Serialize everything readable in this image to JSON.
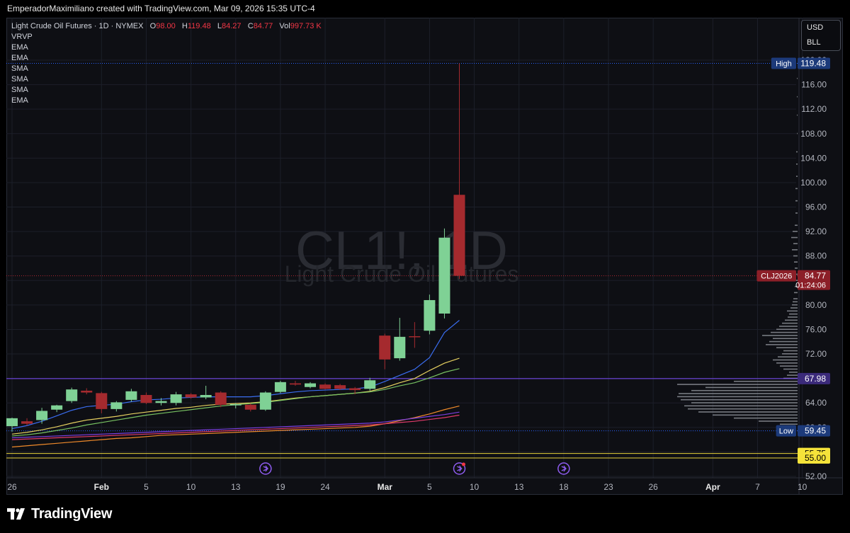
{
  "header": {
    "caption": "EmperadorMaximiliano created with TradingView.com, Mar 09, 2026 15:35 UTC-4"
  },
  "legend": {
    "symbol_line": "Light Crude Oil Futures · 1D · NYMEX",
    "o_label": "O",
    "o_value": "98.00",
    "h_label": "H",
    "h_value": "119.48",
    "l_label": "L",
    "l_value": "84.27",
    "c_label": "C",
    "c_value": "84.77",
    "vol_label": "Vol",
    "vol_value": "997.73 K",
    "indicators": [
      "VRVP",
      "EMA",
      "EMA",
      "SMA",
      "SMA",
      "SMA",
      "EMA"
    ]
  },
  "currency": {
    "currency": "USD",
    "unit": "BLL"
  },
  "watermark": {
    "symbol": "CL1!, 1D",
    "name": "Light Crude Oil Futures"
  },
  "brand": {
    "name": "TradingView"
  },
  "colors": {
    "up": "#7fd195",
    "down": "#a52a2e",
    "background": "#0e0f14"
  },
  "chart_data": {
    "type": "candlestick",
    "y_axis": {
      "range": [
        52,
        121
      ],
      "ticks": [
        "52.00",
        "56.00",
        "60.00",
        "64.00",
        "68.00",
        "72.00",
        "76.00",
        "80.00",
        "84.00",
        "88.00",
        "92.00",
        "96.00",
        "100.00",
        "104.00",
        "108.00",
        "112.00",
        "116.00",
        "120.00"
      ]
    },
    "x_axis": {
      "ticks": [
        {
          "label": "26",
          "x": 0
        },
        {
          "label": "Feb",
          "x": 6
        },
        {
          "label": "5",
          "x": 9
        },
        {
          "label": "10",
          "x": 12
        },
        {
          "label": "13",
          "x": 15
        },
        {
          "label": "19",
          "x": 18
        },
        {
          "label": "24",
          "x": 21
        },
        {
          "label": "Mar",
          "x": 25
        },
        {
          "label": "5",
          "x": 28
        },
        {
          "label": "10",
          "x": 31
        },
        {
          "label": "13",
          "x": 34
        },
        {
          "label": "18",
          "x": 37
        },
        {
          "label": "23",
          "x": 40
        },
        {
          "label": "26",
          "x": 43
        },
        {
          "label": "Apr",
          "x": 47
        },
        {
          "label": "7",
          "x": 50
        },
        {
          "label": "10",
          "x": 53
        }
      ],
      "bold": [
        "Feb",
        "Mar",
        "Apr"
      ]
    },
    "candles": [
      {
        "o": 60.2,
        "h": 61.6,
        "l": 59.3,
        "c": 61.5
      },
      {
        "o": 61.0,
        "h": 61.5,
        "l": 60.3,
        "c": 60.6
      },
      {
        "o": 61.2,
        "h": 63.2,
        "l": 60.6,
        "c": 62.7
      },
      {
        "o": 62.9,
        "h": 63.7,
        "l": 62.5,
        "c": 63.6
      },
      {
        "o": 64.3,
        "h": 66.5,
        "l": 64.0,
        "c": 66.2
      },
      {
        "o": 66.0,
        "h": 66.4,
        "l": 65.4,
        "c": 65.7
      },
      {
        "o": 65.6,
        "h": 65.8,
        "l": 62.3,
        "c": 63.0
      },
      {
        "o": 63.0,
        "h": 64.3,
        "l": 62.6,
        "c": 64.1
      },
      {
        "o": 64.5,
        "h": 66.3,
        "l": 64.2,
        "c": 65.9
      },
      {
        "o": 65.3,
        "h": 65.7,
        "l": 63.8,
        "c": 64.0
      },
      {
        "o": 64.0,
        "h": 64.8,
        "l": 63.6,
        "c": 64.3
      },
      {
        "o": 64.0,
        "h": 65.8,
        "l": 63.6,
        "c": 65.4
      },
      {
        "o": 65.4,
        "h": 65.6,
        "l": 64.7,
        "c": 64.9
      },
      {
        "o": 64.9,
        "h": 66.8,
        "l": 64.6,
        "c": 65.3
      },
      {
        "o": 65.7,
        "h": 65.9,
        "l": 63.3,
        "c": 63.7
      },
      {
        "o": 63.6,
        "h": 64.0,
        "l": 63.1,
        "c": 63.8
      },
      {
        "o": 63.7,
        "h": 63.9,
        "l": 62.6,
        "c": 62.9
      },
      {
        "o": 62.9,
        "h": 65.9,
        "l": 62.7,
        "c": 65.7
      },
      {
        "o": 65.8,
        "h": 67.6,
        "l": 65.6,
        "c": 67.4
      },
      {
        "o": 67.2,
        "h": 67.6,
        "l": 66.8,
        "c": 67.0
      },
      {
        "o": 66.6,
        "h": 67.4,
        "l": 66.4,
        "c": 67.2
      },
      {
        "o": 67.0,
        "h": 67.2,
        "l": 66.2,
        "c": 66.3
      },
      {
        "o": 66.9,
        "h": 67.1,
        "l": 66.1,
        "c": 66.3
      },
      {
        "o": 66.4,
        "h": 66.6,
        "l": 65.4,
        "c": 66.1
      },
      {
        "o": 66.3,
        "h": 68.1,
        "l": 66.0,
        "c": 67.7
      },
      {
        "o": 75.0,
        "h": 75.3,
        "l": 69.5,
        "c": 71.1
      },
      {
        "o": 71.3,
        "h": 77.9,
        "l": 70.9,
        "c": 74.8
      },
      {
        "o": 74.9,
        "h": 77.2,
        "l": 73.0,
        "c": 74.8
      },
      {
        "o": 75.8,
        "h": 81.7,
        "l": 75.2,
        "c": 80.8
      },
      {
        "o": 78.6,
        "h": 92.5,
        "l": 77.8,
        "c": 91.0
      },
      {
        "o": 98.0,
        "h": 119.48,
        "l": 84.27,
        "c": 84.77
      }
    ],
    "moving_averages": [
      {
        "color": "#3a6df0",
        "values": [
          null,
          null,
          null,
          null,
          null,
          null,
          null,
          null,
          null,
          null,
          null,
          null,
          null,
          null,
          null,
          null,
          null,
          null,
          null,
          null,
          null,
          null,
          null,
          null,
          null,
          null,
          null,
          null,
          null,
          null,
          null
        ]
      },
      {
        "color": "#3a6df0",
        "values": [
          59.8,
          60.3,
          61.0,
          61.9,
          62.8,
          63.4,
          63.6,
          63.8,
          64.2,
          64.5,
          64.6,
          64.8,
          64.9,
          65.0,
          65.0,
          65.0,
          65.0,
          65.2,
          65.5,
          65.8,
          66.0,
          66.1,
          66.2,
          66.3,
          66.6,
          67.5,
          68.5,
          69.5,
          71.4,
          75.5,
          77.5
        ]
      },
      {
        "color": "#e6d060",
        "values": [
          58.9,
          59.2,
          59.6,
          60.1,
          60.7,
          61.2,
          61.5,
          61.8,
          62.2,
          62.5,
          62.8,
          63.1,
          63.3,
          63.6,
          63.8,
          63.9,
          64.0,
          64.2,
          64.5,
          64.8,
          65.0,
          65.2,
          65.4,
          65.6,
          65.9,
          66.5,
          67.3,
          68.0,
          69.3,
          70.5,
          71.3
        ]
      },
      {
        "color": "#78c262",
        "values": [
          58.6,
          58.8,
          59.1,
          59.5,
          59.9,
          60.4,
          60.8,
          61.2,
          61.6,
          62.0,
          62.3,
          62.6,
          62.9,
          63.2,
          63.5,
          63.7,
          63.9,
          64.1,
          64.4,
          64.7,
          65.0,
          65.2,
          65.4,
          65.6,
          65.8,
          66.2,
          66.8,
          67.3,
          68.1,
          69.0,
          69.6
        ]
      },
      {
        "color": "#f08a2a",
        "values": [
          56.8,
          57.0,
          57.2,
          57.4,
          57.6,
          57.8,
          58.0,
          58.2,
          58.3,
          58.5,
          58.7,
          58.8,
          58.9,
          59.0,
          59.1,
          59.2,
          59.3,
          59.4,
          59.5,
          59.6,
          59.7,
          59.8,
          59.9,
          60.0,
          60.2,
          60.6,
          61.1,
          61.6,
          62.2,
          62.9,
          63.5
        ]
      },
      {
        "color": "#7b3fe0",
        "values": [
          58.3,
          58.4,
          58.5,
          58.6,
          58.7,
          58.8,
          58.9,
          59.0,
          59.1,
          59.2,
          59.3,
          59.4,
          59.5,
          59.6,
          59.7,
          59.8,
          59.9,
          60.0,
          60.1,
          60.2,
          60.3,
          60.4,
          60.5,
          60.6,
          60.7,
          60.9,
          61.2,
          61.5,
          61.8,
          62.1,
          62.5
        ]
      },
      {
        "color": "#e03a6a",
        "values": [
          58.0,
          58.1,
          58.2,
          58.3,
          58.4,
          58.5,
          58.6,
          58.7,
          58.8,
          58.9,
          59.0,
          59.1,
          59.2,
          59.3,
          59.4,
          59.5,
          59.6,
          59.7,
          59.8,
          59.9,
          60.0,
          60.1,
          60.2,
          60.3,
          60.4,
          60.6,
          60.8,
          61.0,
          61.3,
          61.6,
          62.0
        ]
      }
    ],
    "price_lines": [
      {
        "value": 119.48,
        "label": "High",
        "value_label": "119.48",
        "color": "#2962ff",
        "style": "dotted"
      },
      {
        "value": 84.77,
        "label": "CLJ2026",
        "value_label": "84.77",
        "sub_label": "01:24:06",
        "color": "#b22833",
        "style": "dotted"
      },
      {
        "value": 67.98,
        "label": "",
        "value_label": "67.98",
        "color": "#7c4dff",
        "style": "solid"
      },
      {
        "value": 59.45,
        "label": "Low",
        "value_label": "59.45",
        "color": "#2962ff",
        "style": "dotted"
      },
      {
        "value": 55.75,
        "label": "",
        "value_label": "55.75",
        "color": "#e8d23a",
        "style": "solid"
      },
      {
        "value": 55.0,
        "label": "",
        "value_label": "55.00",
        "color": "#e8d23a",
        "style": "solid"
      }
    ],
    "volume_profile": [
      {
        "p": 60.5,
        "w": 25
      },
      {
        "p": 61.0,
        "w": 55
      },
      {
        "p": 61.5,
        "w": 90
      },
      {
        "p": 62.0,
        "w": 120
      },
      {
        "p": 62.5,
        "w": 140
      },
      {
        "p": 63.0,
        "w": 155
      },
      {
        "p": 63.5,
        "w": 160
      },
      {
        "p": 64.0,
        "w": 150
      },
      {
        "p": 64.5,
        "w": 165
      },
      {
        "p": 65.0,
        "w": 170
      },
      {
        "p": 65.5,
        "w": 168
      },
      {
        "p": 66.0,
        "w": 150
      },
      {
        "p": 66.5,
        "w": 130
      },
      {
        "p": 67.0,
        "w": 170
      },
      {
        "p": 67.5,
        "w": 90
      },
      {
        "p": 68.0,
        "w": 20
      },
      {
        "p": 68.5,
        "w": 15
      },
      {
        "p": 69.0,
        "w": 12
      },
      {
        "p": 69.5,
        "w": 20
      },
      {
        "p": 70.0,
        "w": 25
      },
      {
        "p": 70.5,
        "w": 30
      },
      {
        "p": 71.0,
        "w": 35
      },
      {
        "p": 71.5,
        "w": 28
      },
      {
        "p": 72.0,
        "w": 22
      },
      {
        "p": 72.5,
        "w": 20
      },
      {
        "p": 73.0,
        "w": 30
      },
      {
        "p": 73.5,
        "w": 45
      },
      {
        "p": 74.0,
        "w": 40
      },
      {
        "p": 74.5,
        "w": 35
      },
      {
        "p": 75.0,
        "w": 50
      },
      {
        "p": 75.5,
        "w": 38
      },
      {
        "p": 76.0,
        "w": 30
      },
      {
        "p": 76.5,
        "w": 26
      },
      {
        "p": 77.0,
        "w": 22
      },
      {
        "p": 77.5,
        "w": 18
      },
      {
        "p": 78.0,
        "w": 14
      },
      {
        "p": 78.5,
        "w": 12
      },
      {
        "p": 79.0,
        "w": 15
      },
      {
        "p": 79.5,
        "w": 10
      },
      {
        "p": 80.0,
        "w": 8
      },
      {
        "p": 80.5,
        "w": 7
      },
      {
        "p": 81.0,
        "w": 6
      },
      {
        "p": 82.0,
        "w": 5
      },
      {
        "p": 83.0,
        "w": 4
      },
      {
        "p": 84.0,
        "w": 4
      },
      {
        "p": 85.0,
        "w": 5
      },
      {
        "p": 86.0,
        "w": 4
      },
      {
        "p": 87.0,
        "w": 5
      },
      {
        "p": 88.0,
        "w": 6
      },
      {
        "p": 89.0,
        "w": 8
      },
      {
        "p": 90.0,
        "w": 6
      },
      {
        "p": 91.0,
        "w": 9
      },
      {
        "p": 92.0,
        "w": 7
      },
      {
        "p": 93.0,
        "w": 4
      },
      {
        "p": 95.0,
        "w": 3
      },
      {
        "p": 97.0,
        "w": 3
      },
      {
        "p": 99.0,
        "w": 3
      },
      {
        "p": 101.0,
        "w": 2
      },
      {
        "p": 103.0,
        "w": 2
      },
      {
        "p": 105.0,
        "w": 2
      },
      {
        "p": 108.0,
        "w": 1
      },
      {
        "p": 111.0,
        "w": 1
      },
      {
        "p": 114.0,
        "w": 1
      },
      {
        "p": 117.0,
        "w": 1
      }
    ],
    "event_markers": [
      {
        "x": 17,
        "color": "#8e5cf0"
      },
      {
        "x": 30,
        "color": "#8e5cf0",
        "dot": "#f23645"
      },
      {
        "x": 37,
        "color": "#8e5cf0"
      }
    ]
  }
}
